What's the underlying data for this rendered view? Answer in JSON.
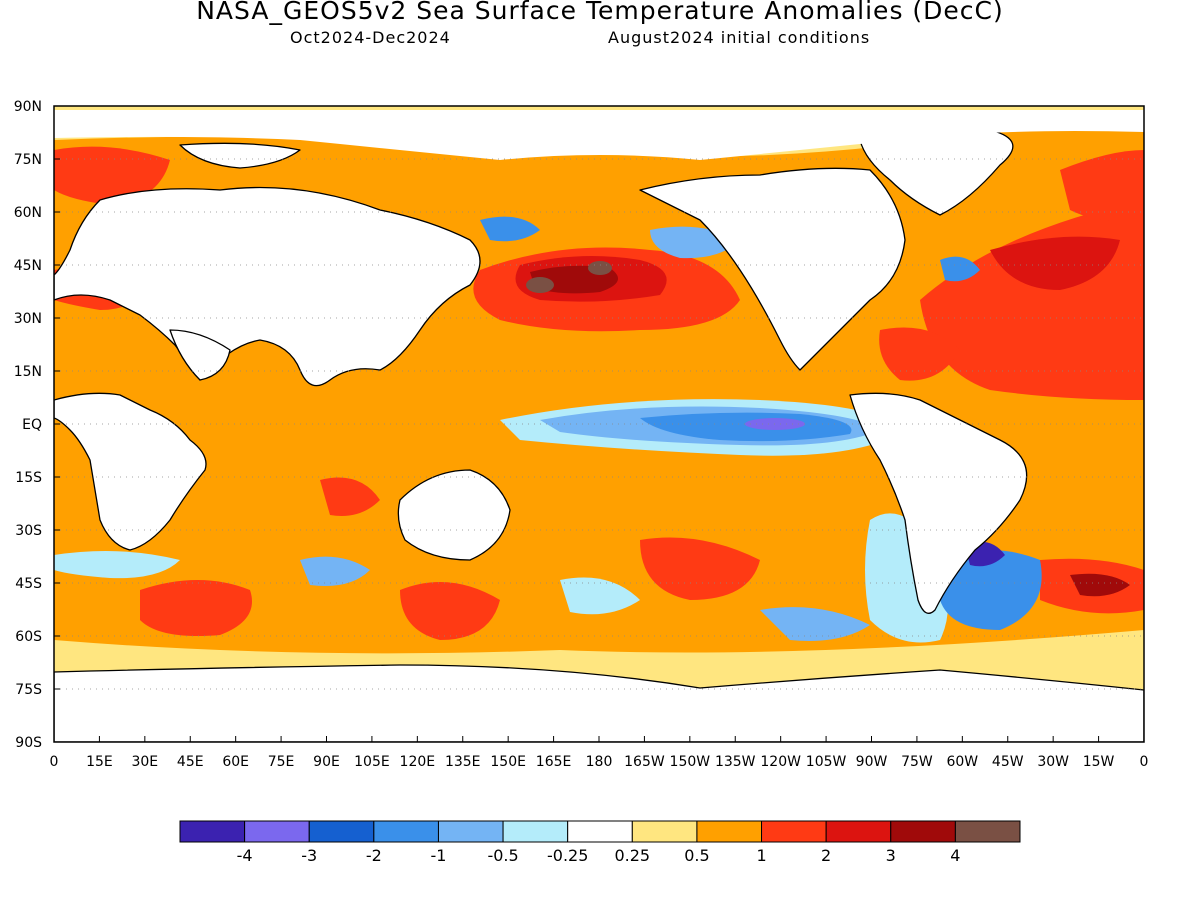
{
  "title": "NASA_GEOS5v2 Sea Surface Temperature Anomalies (DecC)",
  "period": "Oct2024-Dec2024",
  "initial_conditions": "August2024 initial conditions",
  "lat_ticks": [
    "90N",
    "75N",
    "60N",
    "45N",
    "30N",
    "15N",
    "EQ",
    "15S",
    "30S",
    "45S",
    "60S",
    "75S",
    "90S"
  ],
  "lon_ticks": [
    "0",
    "15E",
    "30E",
    "45E",
    "60E",
    "75E",
    "90E",
    "105E",
    "120E",
    "135E",
    "150E",
    "165E",
    "180",
    "165W",
    "150W",
    "135W",
    "120W",
    "105W",
    "90W",
    "75W",
    "60W",
    "45W",
    "30W",
    "15W",
    "0"
  ],
  "colorbar": {
    "colors": [
      "#3b22b0",
      "#7b68ee",
      "#1560d0",
      "#3a90ea",
      "#74b4f4",
      "#b4ecfa",
      "#ffffff",
      "#ffe680",
      "#ffa000",
      "#ff3a14",
      "#dc1410",
      "#a00a0a",
      "#7a5044"
    ],
    "labels": [
      "-4",
      "-3",
      "-2",
      "-1",
      "-0.5",
      "-0.25",
      "0.25",
      "0.5",
      "1",
      "2",
      "3",
      "4"
    ]
  },
  "colors": {
    "warm_05_1": "#ffa000",
    "warm_025_05": "#ffe680",
    "warm_1_2": "#ff3a14",
    "warm_2_3": "#dc1410",
    "warm_3_4": "#a00a0a",
    "warm_gt4": "#7a5044",
    "cool_025_05": "#b4ecfa",
    "cool_05_1": "#74b4f4",
    "cool_1_2": "#3a90ea",
    "cool_2_3": "#1560d0",
    "cool_3_4": "#7b68ee",
    "cool_lt4": "#3b22b0",
    "land": "#ffffff",
    "coastline": "#000000"
  }
}
